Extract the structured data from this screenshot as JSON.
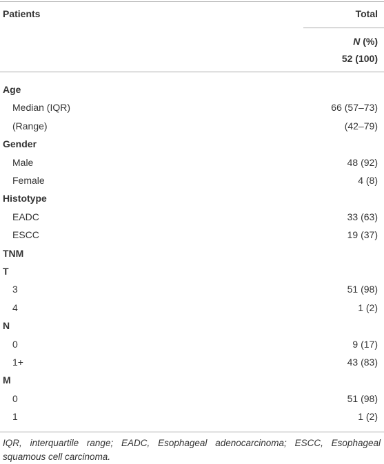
{
  "table": {
    "header": {
      "label": "Patients",
      "total": "Total",
      "unit_italic": "N",
      "unit_rest": "(%)",
      "count": "52 (100)"
    },
    "rows": [
      {
        "label": "Age",
        "group": true
      },
      {
        "label": "Median (IQR)",
        "value": "66 (57–73)"
      },
      {
        "label": "(Range)",
        "value": "(42–79)"
      },
      {
        "label": "Gender",
        "group": true
      },
      {
        "label": "Male",
        "value": "48 (92)"
      },
      {
        "label": "Female",
        "value": "4 (8)"
      },
      {
        "label": "Histotype",
        "group": true
      },
      {
        "label": "EADC",
        "value": "33 (63)"
      },
      {
        "label": "ESCC",
        "value": "19 (37)"
      },
      {
        "label": "TNM",
        "group": true
      },
      {
        "label": "T",
        "group": true
      },
      {
        "label": "3",
        "value": "51 (98)"
      },
      {
        "label": "4",
        "value": "1 (2)"
      },
      {
        "label": "N",
        "group": true
      },
      {
        "label": "0",
        "value": "9 (17)"
      },
      {
        "label": "1+",
        "value": "43 (83)"
      },
      {
        "label": "M",
        "group": true
      },
      {
        "label": "0",
        "value": "51 (98)"
      },
      {
        "label": "1",
        "value": "1 (2)"
      }
    ],
    "footnote": "IQR, interquartile range; EADC, Esophageal adenocarcinoma; ESCC, Esophageal squamous cell carcinoma."
  }
}
